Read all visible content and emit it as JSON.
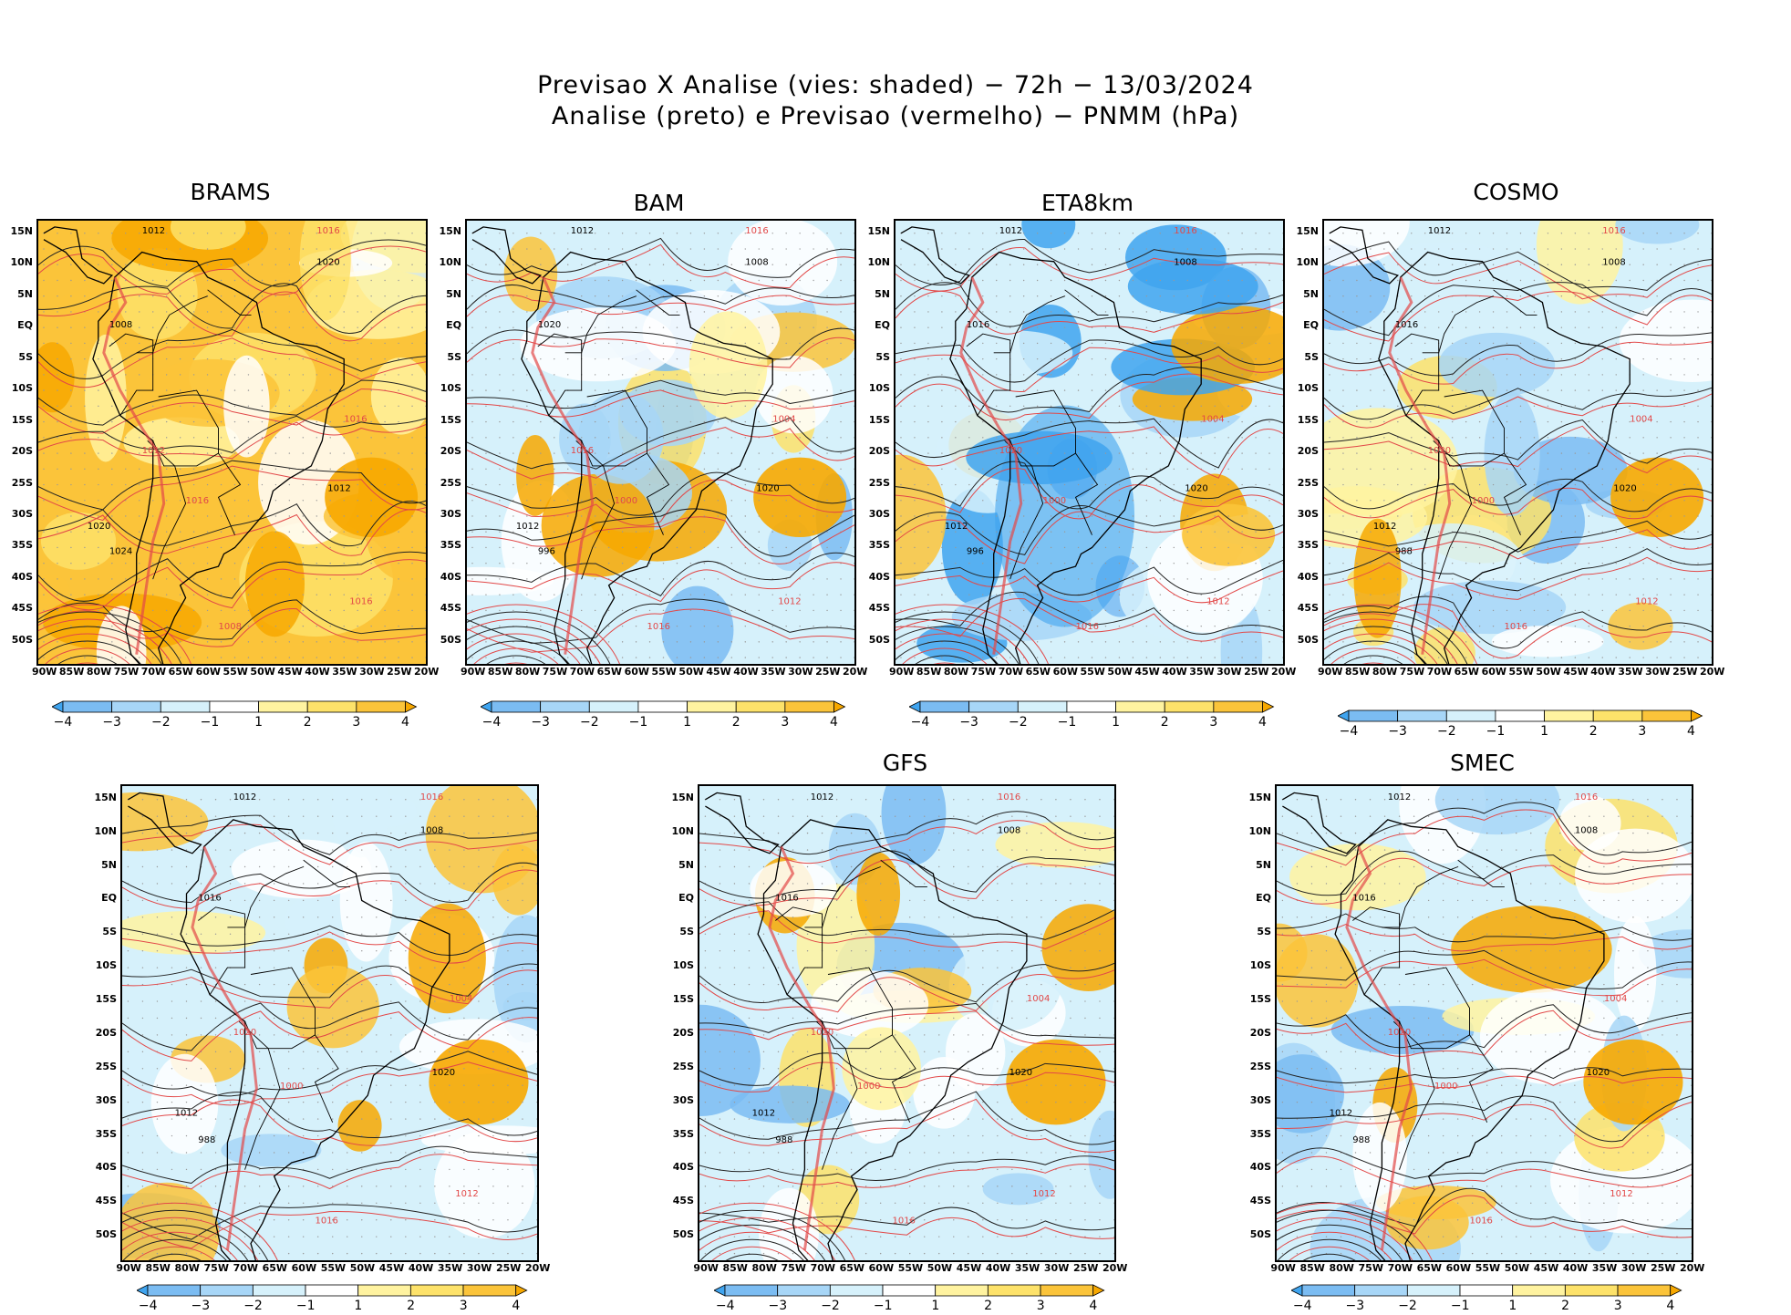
{
  "figure": {
    "title_line1": "Previsao X Analise (vies: shaded) − 72h − 13/03/2024",
    "title_line2": "Analise (preto) e Previsao (vermelho) − PNMM (hPa)"
  },
  "axes": {
    "lat_labels": [
      "15N",
      "10N",
      "5N",
      "EQ",
      "5S",
      "10S",
      "15S",
      "20S",
      "25S",
      "30S",
      "35S",
      "40S",
      "45S",
      "50S"
    ],
    "lon_labels": [
      "90W",
      "85W",
      "80W",
      "75W",
      "70W",
      "65W",
      "60W",
      "55W",
      "50W",
      "45W",
      "40W",
      "35W",
      "30W",
      "25W",
      "20W"
    ]
  },
  "colorbar": {
    "labels": [
      "−4",
      "−3",
      "−2",
      "−1",
      "1",
      "2",
      "3",
      "4"
    ],
    "colors": [
      "#3fa4ef",
      "#7bbcf2",
      "#a7d6f7",
      "#d6f1fb",
      "#ffffff",
      "#fff3a0",
      "#fde26a",
      "#fbc43a",
      "#f7a800"
    ]
  },
  "panels": [
    {
      "title": "BRAMS",
      "bias": "warm",
      "contour_labels": [
        "1012",
        "1016",
        "1020",
        "1016",
        "1008",
        "1012",
        "1020",
        "1016",
        "1024",
        "1008",
        "1012",
        "1016"
      ]
    },
    {
      "title": "BAM",
      "bias": "mixed",
      "contour_labels": [
        "1012",
        "1016",
        "1008",
        "1004",
        "1020",
        "1016",
        "1012",
        "1000",
        "996",
        "1016",
        "1020",
        "1012"
      ]
    },
    {
      "title": "ETA8km",
      "bias": "cool",
      "contour_labels": [
        "1012",
        "1016",
        "1008",
        "1004",
        "1016",
        "1020",
        "1012",
        "1000",
        "996",
        "1016",
        "1020",
        "1012"
      ]
    },
    {
      "title": "COSMO",
      "bias": "mixed",
      "contour_labels": [
        "1012",
        "1016",
        "1008",
        "1004",
        "1016",
        "1020",
        "1012",
        "1000",
        "988",
        "1016",
        "1020",
        "1012"
      ]
    },
    {
      "title": "",
      "bias": "mixed",
      "contour_labels": [
        "1012",
        "1016",
        "1008",
        "1004",
        "1016",
        "1020",
        "1012",
        "1000",
        "988",
        "1016",
        "1020",
        "1012"
      ]
    },
    {
      "title": "GFS",
      "bias": "mixed",
      "contour_labels": [
        "1012",
        "1016",
        "1008",
        "1004",
        "1016",
        "1020",
        "1012",
        "1000",
        "988",
        "1016",
        "1020",
        "1012"
      ]
    },
    {
      "title": "SMEC",
      "bias": "mixed",
      "contour_labels": [
        "1012",
        "1016",
        "1008",
        "1004",
        "1016",
        "1020",
        "1012",
        "1000",
        "988",
        "1016",
        "1020",
        "1012"
      ]
    }
  ]
}
